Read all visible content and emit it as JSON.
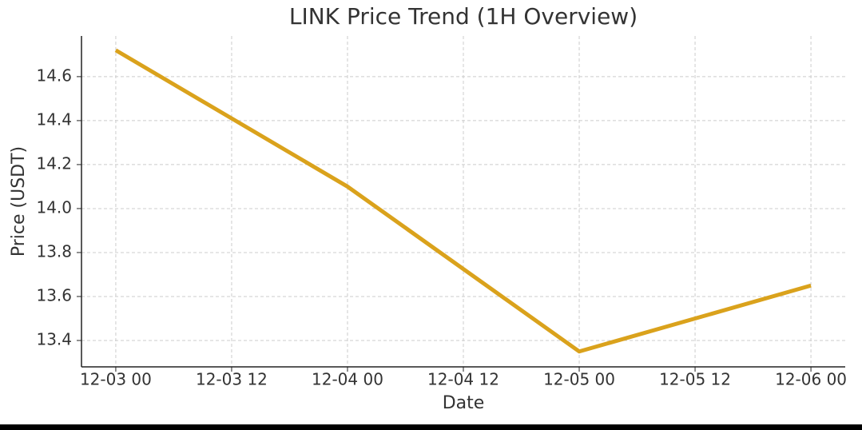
{
  "chart_data": {
    "type": "line",
    "title": "LINK Price Trend (1H Overview)",
    "xlabel": "Date",
    "ylabel": "Price (USDT)",
    "x": [
      "12-03 00",
      "12-04 00",
      "12-05 00",
      "12-06 00"
    ],
    "values": [
      14.72,
      14.1,
      13.35,
      13.65
    ],
    "color": "#daa21c",
    "xticks": [
      "12-03 00",
      "12-03 12",
      "12-04 00",
      "12-04 12",
      "12-05 00",
      "12-05 12",
      "12-06 00"
    ],
    "ylim": [
      13.28,
      14.785
    ],
    "yticks": [
      13.4,
      13.6,
      13.8,
      {
        "value": 14,
        "label": "14.0"
      },
      14.2,
      14.4,
      14.6
    ],
    "grid": true
  }
}
